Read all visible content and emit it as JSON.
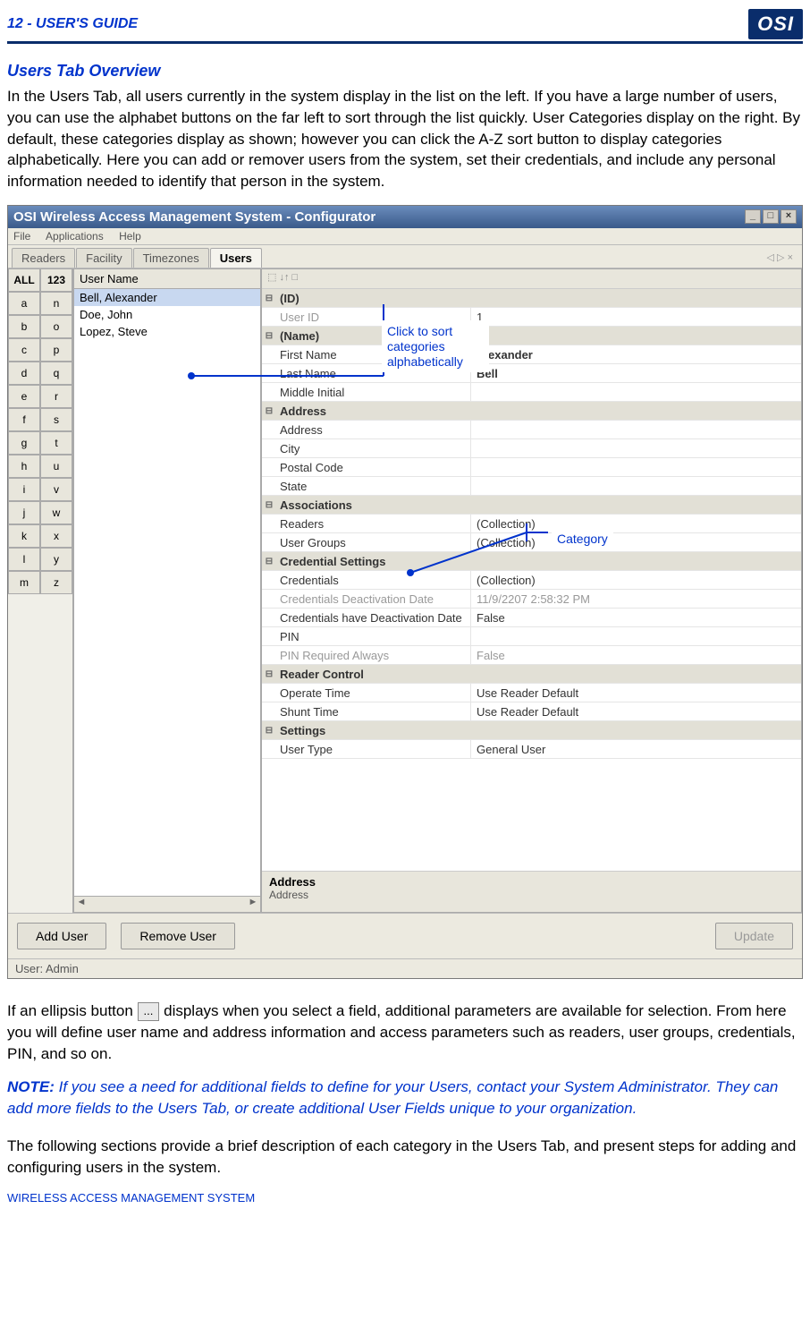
{
  "header": {
    "page_label": "12 - USER'S GUIDE",
    "logo_text": "OSI"
  },
  "doc": {
    "section_title": "Users Tab Overview",
    "para1": "In the Users Tab, all users currently in the system display in the list on the left.   If you have a large number of users, you can use the alphabet buttons on the far left to sort through the list quickly.   User Categories display on the right.   By default, these categories display as shown; however you can click the A-Z sort button to display categories alphabetically.   Here you can add or remover users from the system, set their credentials, and include any personal information needed to identify that person in the system.",
    "para2a": "If an ellipsis button ",
    "para2b": " displays when you select a field, additional parameters are available for selection. From here you will define user name and address information and access parameters such as readers, user groups, credentials, PIN, and so on.",
    "note_label": "NOTE:",
    "note_body": "   If you see a need for additional fields to define for your Users, contact your System Administrator.   They can add more fields to the Users Tab, or create additional User Fields unique to your organization.",
    "para3": "The following sections provide a brief description of each category in the Users Tab, and present steps for adding and configuring users in the system.",
    "footer": "WIRELESS ACCESS MANAGEMENT SYSTEM"
  },
  "win": {
    "title": "OSI Wireless Access Management System - Configurator",
    "menu": [
      "File",
      "Applications",
      "Help"
    ],
    "tabs": [
      "Readers",
      "Facility",
      "Timezones",
      "Users"
    ],
    "alpha_col1": [
      "ALL",
      "a",
      "b",
      "c",
      "d",
      "e",
      "f",
      "g",
      "h",
      "i",
      "j",
      "k",
      "l",
      "m"
    ],
    "alpha_col2": [
      "123",
      "n",
      "o",
      "p",
      "q",
      "r",
      "s",
      "t",
      "u",
      "v",
      "w",
      "x",
      "y",
      "z"
    ],
    "user_list_hdr": "User Name",
    "users": [
      "Bell, Alexander",
      "Doe, John",
      "Lopez, Steve"
    ],
    "prop_toolbar": "⬚ ↓↑ □",
    "rows": [
      {
        "t": "cat",
        "k": "(ID)"
      },
      {
        "t": "row",
        "k": "User ID",
        "v": "1",
        "dimk": true
      },
      {
        "t": "cat",
        "k": "(Name)"
      },
      {
        "t": "row",
        "k": "First Name",
        "v": "Alexander",
        "boldv": true
      },
      {
        "t": "row",
        "k": "Last Name",
        "v": "Bell",
        "boldv": true
      },
      {
        "t": "row",
        "k": "Middle Initial",
        "v": ""
      },
      {
        "t": "cat",
        "k": "Address"
      },
      {
        "t": "row",
        "k": "Address",
        "v": ""
      },
      {
        "t": "row",
        "k": "City",
        "v": ""
      },
      {
        "t": "row",
        "k": "Postal Code",
        "v": ""
      },
      {
        "t": "row",
        "k": "State",
        "v": ""
      },
      {
        "t": "cat",
        "k": "Associations"
      },
      {
        "t": "row",
        "k": "Readers",
        "v": "(Collection)"
      },
      {
        "t": "row",
        "k": "User Groups",
        "v": "(Collection)"
      },
      {
        "t": "cat",
        "k": "Credential Settings"
      },
      {
        "t": "row",
        "k": "Credentials",
        "v": "(Collection)"
      },
      {
        "t": "row",
        "k": "Credentials Deactivation Date",
        "v": "11/9/2207 2:58:32 PM",
        "dimk": true,
        "dimv": true
      },
      {
        "t": "row",
        "k": "Credentials have Deactivation Date",
        "v": "False"
      },
      {
        "t": "row",
        "k": "PIN",
        "v": ""
      },
      {
        "t": "row",
        "k": "PIN Required Always",
        "v": "False",
        "dimk": true,
        "dimv": true
      },
      {
        "t": "cat",
        "k": "Reader Control"
      },
      {
        "t": "row",
        "k": "Operate Time",
        "v": "Use Reader Default"
      },
      {
        "t": "row",
        "k": "Shunt Time",
        "v": "Use Reader Default"
      },
      {
        "t": "cat",
        "k": "Settings"
      },
      {
        "t": "row",
        "k": "User Type",
        "v": "General User"
      }
    ],
    "desc_title": "Address",
    "desc_sub": "Address",
    "btn_add": "Add User",
    "btn_remove": "Remove User",
    "btn_update": "Update",
    "status": "User: Admin"
  },
  "callouts": {
    "c1": "Click to sort categories alphabetically",
    "c2": "Category"
  },
  "colors": {
    "brand_blue": "#0033cc",
    "dark_blue": "#0a2d6b",
    "win_bg": "#d4d0c8",
    "panel_bg": "#eceae0"
  },
  "ellipsis_label": "..."
}
